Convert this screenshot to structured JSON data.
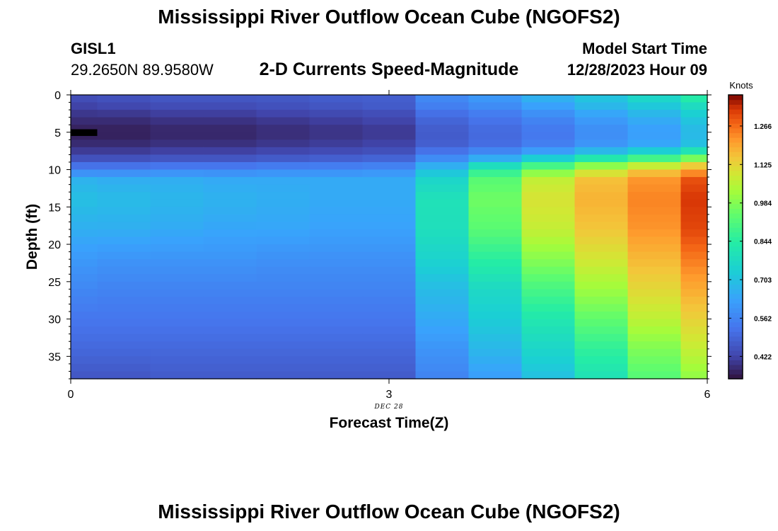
{
  "header": {
    "title": "Mississippi River Outflow Ocean Cube (NGOFS2)",
    "station": "GISL1",
    "coords": "29.2650N  89.9580W",
    "subtitle": "2-D Currents Speed-Magnitude",
    "model_start_label": "Model Start Time",
    "model_start_value": "12/28/2023 Hour 09"
  },
  "footer": {
    "title": "Mississippi River Outflow Ocean Cube (NGOFS2)"
  },
  "chart_data": {
    "type": "heatmap",
    "xlabel": "Forecast Time(Z)",
    "ylabel": "Depth (ft)",
    "x_ticks": [
      0,
      3,
      6
    ],
    "x_tick_labels": [
      "0",
      "3",
      "6"
    ],
    "date_label": "DEC 28",
    "xlim": [
      0,
      6
    ],
    "y_ticks": [
      0,
      5,
      10,
      15,
      20,
      25,
      30,
      35
    ],
    "y_tick_labels": [
      "0",
      "5",
      "10",
      "15",
      "20",
      "25",
      "30",
      "35"
    ],
    "ylim": [
      38,
      0
    ],
    "colorbar": {
      "label": "Knots",
      "ticks": [
        1.266,
        1.125,
        0.984,
        0.844,
        0.703,
        0.562,
        0.422
      ],
      "tick_labels": [
        "1.266",
        "1.125",
        "0.984",
        "0.844",
        "0.703",
        "0.562",
        "0.422"
      ],
      "range": [
        0.34,
        1.38
      ]
    },
    "time_edges": [
      0,
      0.25,
      0.75,
      1.25,
      1.75,
      2.25,
      2.75,
      3.25,
      3.75,
      4.25,
      4.75,
      5.25,
      5.75,
      6
    ],
    "depth_profiles": [
      {
        "depth": 0,
        "values": [
          0.45,
          0.46,
          0.47,
          0.47,
          0.47,
          0.48,
          0.48,
          0.58,
          0.62,
          0.68,
          0.72,
          0.78,
          0.86
        ]
      },
      {
        "depth": 1.5,
        "values": [
          0.42,
          0.43,
          0.44,
          0.44,
          0.45,
          0.46,
          0.47,
          0.55,
          0.58,
          0.63,
          0.68,
          0.72,
          0.78
        ]
      },
      {
        "depth": 3,
        "values": [
          0.39,
          0.39,
          0.4,
          0.4,
          0.41,
          0.42,
          0.43,
          0.5,
          0.53,
          0.57,
          0.62,
          0.66,
          0.72
        ]
      },
      {
        "depth": 5,
        "values": [
          0.36,
          0.36,
          0.37,
          0.37,
          0.38,
          0.39,
          0.4,
          0.47,
          0.5,
          0.53,
          0.58,
          0.62,
          0.68
        ]
      },
      {
        "depth": 6.5,
        "values": [
          0.38,
          0.38,
          0.39,
          0.39,
          0.4,
          0.41,
          0.42,
          0.48,
          0.51,
          0.55,
          0.6,
          0.64,
          0.7
        ]
      },
      {
        "depth": 8,
        "values": [
          0.42,
          0.42,
          0.43,
          0.43,
          0.44,
          0.45,
          0.46,
          0.54,
          0.59,
          0.65,
          0.72,
          0.78,
          0.86
        ]
      },
      {
        "depth": 9,
        "values": [
          0.48,
          0.48,
          0.49,
          0.49,
          0.5,
          0.51,
          0.52,
          0.62,
          0.72,
          0.82,
          0.92,
          1.0,
          1.08
        ]
      },
      {
        "depth": 10,
        "values": [
          0.56,
          0.56,
          0.57,
          0.57,
          0.58,
          0.58,
          0.59,
          0.7,
          0.85,
          0.97,
          1.07,
          1.14,
          1.2
        ]
      },
      {
        "depth": 11.5,
        "values": [
          0.67,
          0.66,
          0.66,
          0.65,
          0.65,
          0.65,
          0.65,
          0.76,
          0.93,
          1.07,
          1.16,
          1.22,
          1.3
        ]
      },
      {
        "depth": 14,
        "values": [
          0.7,
          0.69,
          0.68,
          0.67,
          0.66,
          0.65,
          0.65,
          0.8,
          0.96,
          1.1,
          1.18,
          1.24,
          1.33
        ]
      },
      {
        "depth": 18,
        "values": [
          0.66,
          0.66,
          0.65,
          0.64,
          0.64,
          0.63,
          0.63,
          0.79,
          0.93,
          1.07,
          1.15,
          1.22,
          1.31
        ]
      },
      {
        "depth": 22,
        "values": [
          0.61,
          0.6,
          0.6,
          0.6,
          0.59,
          0.59,
          0.59,
          0.75,
          0.85,
          0.99,
          1.09,
          1.17,
          1.25
        ]
      },
      {
        "depth": 26,
        "values": [
          0.57,
          0.56,
          0.56,
          0.56,
          0.56,
          0.56,
          0.56,
          0.69,
          0.77,
          0.9,
          1.02,
          1.12,
          1.19
        ]
      },
      {
        "depth": 30,
        "values": [
          0.53,
          0.53,
          0.53,
          0.53,
          0.53,
          0.53,
          0.53,
          0.65,
          0.73,
          0.82,
          0.94,
          1.06,
          1.13
        ]
      },
      {
        "depth": 34,
        "values": [
          0.5,
          0.5,
          0.5,
          0.5,
          0.5,
          0.5,
          0.5,
          0.6,
          0.68,
          0.76,
          0.86,
          0.98,
          1.07
        ]
      },
      {
        "depth": 38,
        "values": [
          0.46,
          0.46,
          0.47,
          0.47,
          0.47,
          0.47,
          0.47,
          0.56,
          0.62,
          0.7,
          0.8,
          0.92,
          1.0
        ]
      }
    ]
  }
}
